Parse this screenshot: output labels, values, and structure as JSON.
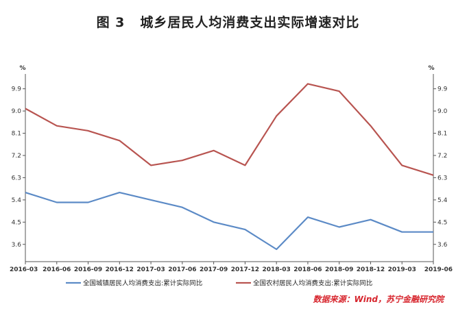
{
  "header": {
    "figure_no": "图 3",
    "title": "城乡居民人均消费支出实际增速对比"
  },
  "source": "数据来源：Wind，苏宁金融研究院",
  "chart_data": {
    "type": "line",
    "x": [
      "2016-03",
      "2016-06",
      "2016-09",
      "2016-12",
      "2017-03",
      "2017-06",
      "2017-09",
      "2017-12",
      "2018-03",
      "2018-06",
      "2018-09",
      "2018-12",
      "2019-03",
      "2019-06"
    ],
    "yticks": [
      3.6,
      4.5,
      5.4,
      6.3,
      7.2,
      8.1,
      9.0,
      9.9
    ],
    "ylim": [
      2.9,
      10.5
    ],
    "y_unit_left": "%",
    "y_unit_right": "%",
    "legend_position": "bottom",
    "colors": {
      "urban": "#5b8ac6",
      "rural": "#b85450"
    },
    "series": [
      {
        "name": "全国城镇居民人均消费支出:累计实际同比",
        "color": "#5b8ac6",
        "values": [
          5.7,
          5.3,
          5.3,
          5.7,
          5.4,
          5.1,
          4.5,
          4.2,
          3.4,
          4.7,
          4.3,
          4.6,
          4.1,
          4.1
        ]
      },
      {
        "name": "全国农村居民人均消费支出:累计实际同比",
        "color": "#b85450",
        "values": [
          9.1,
          8.4,
          8.2,
          7.8,
          6.8,
          7.0,
          7.4,
          6.8,
          8.8,
          10.1,
          9.8,
          8.4,
          6.8,
          6.4
        ]
      }
    ]
  }
}
